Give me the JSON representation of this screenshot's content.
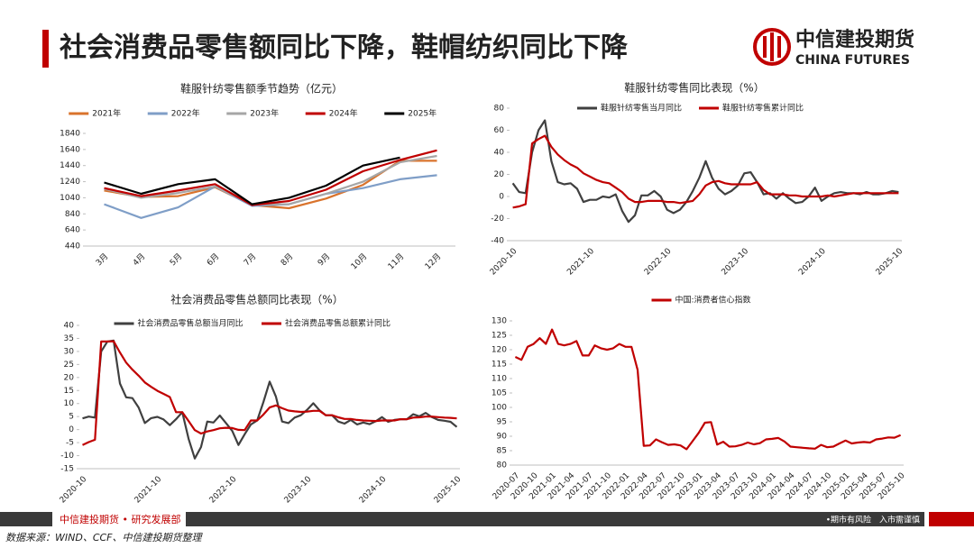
{
  "header": {
    "title": "社会消费品零售额同比下降，鞋帽纺织同比下降",
    "logo_cn": "中信建投期货",
    "logo_en": "CHINA FUTURES"
  },
  "footer": {
    "left": "中信建投期货 • 研究发展部",
    "right": "•期市有风险　入市需谨慎",
    "source": "数据来源：WIND、CCF、中信建投期货整理"
  },
  "chart_data": [
    {
      "type": "line",
      "title": "鞋服针纺零售额季节趋势（亿元）",
      "categories": [
        "3月",
        "4月",
        "5月",
        "6月",
        "7月",
        "8月",
        "9月",
        "10月",
        "11月",
        "12月"
      ],
      "series": [
        {
          "name": "2021年",
          "color": "#d9732c",
          "values": [
            1130,
            1050,
            1060,
            1170,
            950,
            910,
            1030,
            1200,
            1500,
            1500
          ]
        },
        {
          "name": "2022年",
          "color": "#7f9ec7",
          "values": [
            960,
            790,
            920,
            1180,
            940,
            960,
            1090,
            1160,
            1270,
            1320
          ]
        },
        {
          "name": "2023年",
          "color": "#a6a6a6",
          "values": [
            1150,
            1040,
            1100,
            1180,
            960,
            960,
            1090,
            1240,
            1480,
            1560
          ]
        },
        {
          "name": "2024年",
          "color": "#c00000",
          "values": [
            1160,
            1060,
            1130,
            1210,
            950,
            1000,
            1140,
            1370,
            1510,
            1630
          ]
        },
        {
          "name": "2025年",
          "color": "#000000",
          "values": [
            1230,
            1090,
            1210,
            1270,
            960,
            1040,
            1190,
            1440,
            1540,
            null
          ]
        }
      ],
      "ylim": [
        440,
        1840
      ],
      "yticks": [
        440,
        640,
        840,
        1040,
        1240,
        1440,
        1640,
        1840
      ]
    },
    {
      "type": "line",
      "title": "鞋服针纺零售同比表现（%）",
      "categories": [
        "2020-10",
        null,
        null,
        null,
        null,
        null,
        null,
        null,
        null,
        null,
        null,
        null,
        "2021-10",
        null,
        null,
        null,
        null,
        null,
        null,
        null,
        null,
        null,
        null,
        null,
        "2022-10",
        null,
        null,
        null,
        null,
        null,
        null,
        null,
        null,
        null,
        null,
        null,
        "2023-10",
        null,
        null,
        null,
        null,
        null,
        null,
        null,
        null,
        null,
        null,
        null,
        "2024-10",
        null,
        null,
        null,
        null,
        null,
        null,
        null,
        null,
        null,
        null,
        null,
        "2025-10"
      ],
      "series": [
        {
          "name": "鞋服针纺零售当月同比",
          "color": "#404040",
          "values": [
            12,
            4,
            3,
            40,
            60,
            69,
            32,
            13,
            11,
            12,
            7,
            -5,
            -3,
            -3,
            0,
            -1,
            2,
            -13,
            -23,
            -17,
            1,
            1,
            5,
            0,
            -12,
            -15,
            -12,
            -5,
            5,
            17,
            32,
            17,
            7,
            2,
            5,
            10,
            21,
            22,
            13,
            2,
            3,
            -2,
            3,
            -2,
            -6,
            -5,
            0,
            8,
            -4,
            0,
            3,
            4,
            3,
            3,
            2,
            4,
            2,
            2,
            3,
            5,
            4
          ]
        },
        {
          "name": "鞋服针纺零售累计同比",
          "color": "#c00000",
          "values": [
            -10,
            -9,
            -7,
            48,
            52,
            55,
            45,
            38,
            33,
            29,
            26,
            21,
            18,
            15,
            13,
            12,
            8,
            4,
            -2,
            -5,
            -5,
            -4,
            -4,
            -4,
            -5,
            -5,
            -6,
            -5,
            -4,
            2,
            10,
            13,
            14,
            12,
            11,
            11,
            11,
            11,
            13,
            6,
            2,
            2,
            2,
            1,
            1,
            0,
            0,
            0,
            0,
            1,
            0,
            1,
            2,
            3,
            3,
            3,
            3,
            3,
            3,
            3,
            3
          ]
        }
      ],
      "ylim": [
        -40,
        80
      ],
      "yticks": [
        -40,
        -20,
        0,
        20,
        40,
        60,
        80
      ]
    },
    {
      "type": "line",
      "title": "社会消费品零售总额同比表现（%）",
      "categories": [
        "2020-10",
        null,
        null,
        null,
        null,
        null,
        null,
        null,
        null,
        null,
        null,
        null,
        "2021-10",
        null,
        null,
        null,
        null,
        null,
        null,
        null,
        null,
        null,
        null,
        null,
        "2022-10",
        null,
        null,
        null,
        null,
        null,
        null,
        null,
        null,
        null,
        null,
        null,
        "2023-10",
        null,
        null,
        null,
        null,
        null,
        null,
        null,
        null,
        null,
        null,
        null,
        "2024-10",
        null,
        null,
        null,
        null,
        null,
        null,
        null,
        null,
        null,
        null,
        null,
        "2025-10"
      ],
      "series": [
        {
          "name": "社会消费品零售总额当月同比",
          "color": "#404040",
          "values": [
            4.3,
            5,
            4.6,
            30,
            33.8,
            34.2,
            17.7,
            12.4,
            12.1,
            8.5,
            2.5,
            4.4,
            4.9,
            3.9,
            1.7,
            4,
            6.7,
            -3.5,
            -11.1,
            -6.7,
            3.1,
            2.7,
            5.4,
            2.5,
            -0.5,
            -5.9,
            -1.8,
            2,
            3.5,
            10.6,
            18.4,
            12.7,
            3.1,
            2.5,
            4.6,
            5.5,
            7.6,
            10.1,
            7.4,
            5.5,
            5.5,
            3.1,
            2.3,
            3.7,
            2,
            2.7,
            2.1,
            3.2,
            4.8,
            3,
            3.7,
            4,
            4,
            5.9,
            5.1,
            6.4,
            4.8,
            3.7,
            3.4,
            3,
            1
          ]
        },
        {
          "name": "社会消费品零售总额累计同比",
          "color": "#c00000",
          "values": [
            -5.9,
            -4.8,
            -3.9,
            33.8,
            33.8,
            33.9,
            29.6,
            25.7,
            23,
            20.7,
            18.1,
            16.4,
            14.9,
            13.7,
            12.5,
            6.7,
            6.7,
            3.3,
            -0.2,
            -1.5,
            -0.7,
            -0.2,
            0.5,
            0.7,
            0.6,
            -0.1,
            -0.2,
            3.5,
            3.5,
            5.8,
            8.5,
            9.3,
            8.2,
            7.3,
            7,
            6.8,
            6.9,
            7.2,
            7.2,
            5.5,
            5.5,
            4.7,
            4.1,
            4.1,
            3.7,
            3.5,
            3.4,
            3.3,
            3.5,
            3.5,
            3.5,
            4,
            4,
            4.6,
            4.7,
            5,
            5,
            4.8,
            4.6,
            4.5,
            4.3
          ]
        }
      ],
      "ylim": [
        -15,
        40
      ],
      "yticks": [
        -15,
        -10,
        -5,
        0,
        5,
        10,
        15,
        20,
        25,
        30,
        35,
        40
      ]
    },
    {
      "type": "line",
      "categories": [
        "2020-07",
        null,
        null,
        "2020-10",
        null,
        null,
        "2021-01",
        null,
        null,
        "2021-04",
        null,
        null,
        "2021-07",
        null,
        null,
        "2021-10",
        null,
        null,
        "2022-01",
        null,
        null,
        "2022-04",
        null,
        null,
        "2022-07",
        null,
        null,
        "2022-10",
        null,
        null,
        "2023-01",
        null,
        null,
        "2023-04",
        null,
        null,
        "2023-07",
        null,
        null,
        "2023-10",
        null,
        null,
        "2024-01",
        null,
        null,
        "2024-04",
        null,
        null,
        "2024-07",
        null,
        null,
        "2024-10",
        null,
        null,
        "2025-01",
        null,
        null,
        "2025-04",
        null,
        null,
        "2025-07",
        null,
        null,
        "2025-10"
      ],
      "series": [
        {
          "name": "中国:消费者信心指数",
          "color": "#c00000",
          "values": [
            117.5,
            116.5,
            121,
            122,
            124,
            122,
            127,
            122,
            121.5,
            122,
            123,
            118,
            118,
            121.5,
            120.5,
            120,
            120.5,
            122,
            121,
            121,
            113,
            86.7,
            86.8,
            88.9,
            87.9,
            87,
            87.2,
            86.8,
            85.5,
            88.3,
            91.2,
            94.7,
            94.9,
            87.1,
            88.1,
            86.4,
            86.5,
            87,
            87.8,
            87.2,
            87.6,
            88.9,
            89.1,
            89.4,
            88.2,
            86.4,
            86.2,
            86,
            85.8,
            85.7,
            87,
            86.2,
            86.4,
            87.5,
            88.5,
            87.5,
            87.8,
            88,
            87.8,
            88.9,
            89.2,
            89.6,
            89.5,
            90.4
          ]
        }
      ],
      "ylim": [
        80,
        130
      ],
      "yticks": [
        80,
        85,
        90,
        95,
        100,
        105,
        110,
        115,
        120,
        125,
        130
      ]
    }
  ]
}
